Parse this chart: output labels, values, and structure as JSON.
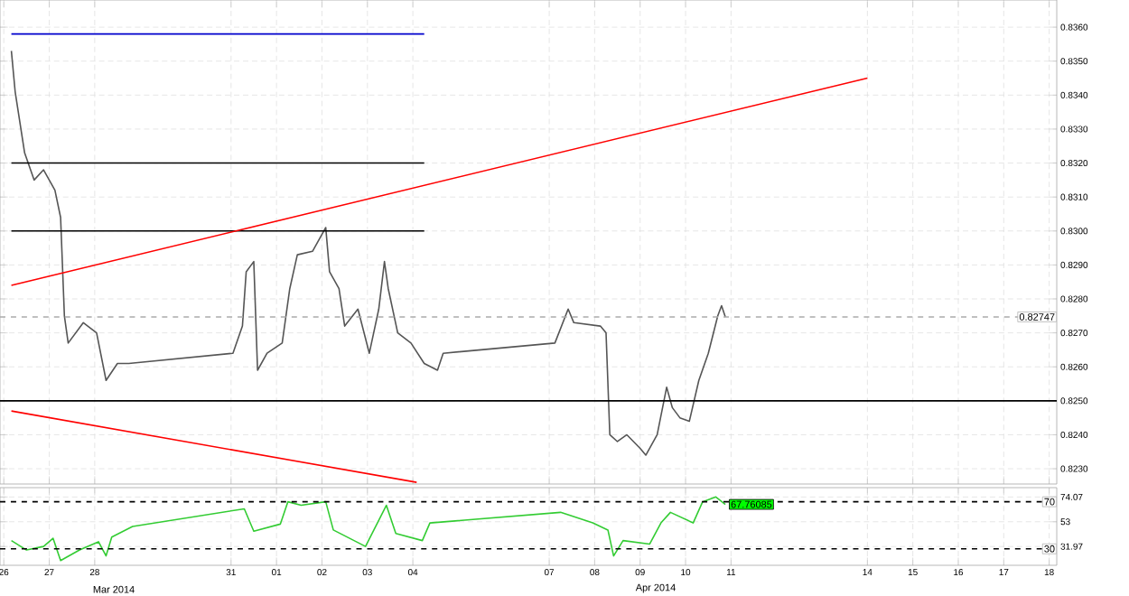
{
  "chart_data": [
    {
      "type": "line",
      "xlim": [
        "2014-03-25T22:00",
        "2014-04-18T04:00"
      ],
      "ylim": [
        0.82255,
        0.8368
      ],
      "xticks": [
        {
          "value": "2014-03-26",
          "label": null
        },
        {
          "value": "2014-03-27",
          "label": null
        },
        {
          "value": "2014-03-28",
          "label": null
        },
        {
          "value": "2014-03-31",
          "label": null
        },
        {
          "value": "2014-04-01",
          "label": null
        },
        {
          "value": "2014-04-02",
          "label": null
        },
        {
          "value": "2014-04-03",
          "label": null
        },
        {
          "value": "2014-04-04",
          "label": null
        },
        {
          "value": "2014-04-07",
          "label": null
        },
        {
          "value": "2014-04-08",
          "label": null
        },
        {
          "value": "2014-04-09",
          "label": null
        },
        {
          "value": "2014-04-10",
          "label": null
        },
        {
          "value": "2014-04-11",
          "label": null
        },
        {
          "value": "2014-04-14",
          "label": null
        },
        {
          "value": "2014-04-15",
          "label": null
        },
        {
          "value": "2014-04-16",
          "label": null
        },
        {
          "value": "2014-04-17",
          "label": null
        },
        {
          "value": "2014-04-18",
          "label": null
        }
      ],
      "yticks": [
        {
          "value": 0.823,
          "label": "0.8230"
        },
        {
          "value": 0.824,
          "label": "0.8240"
        },
        {
          "value": 0.825,
          "label": "0.8250"
        },
        {
          "value": 0.826,
          "label": "0.8260"
        },
        {
          "value": 0.827,
          "label": "0.8270"
        },
        {
          "value": 0.828,
          "label": "0.8280"
        },
        {
          "value": 0.829,
          "label": "0.8290"
        },
        {
          "value": 0.83,
          "label": "0.8300"
        },
        {
          "value": 0.831,
          "label": "0.8310"
        },
        {
          "value": 0.832,
          "label": "0.8320"
        },
        {
          "value": 0.833,
          "label": "0.8330"
        },
        {
          "value": 0.834,
          "label": "0.8340"
        },
        {
          "value": 0.835,
          "label": "0.8350"
        },
        {
          "value": 0.836,
          "label": "0.8360"
        }
      ],
      "tick_labels": "y",
      "grid": true,
      "series": [
        {
          "color": "#555555",
          "x": [
            "2014-03-26T04:00",
            "2014-03-26T06:00",
            "2014-03-26T11:00",
            "2014-03-26T16:00",
            "2014-03-26T21:00",
            "2014-03-27T03:00",
            "2014-03-27T06:00",
            "2014-03-27T08:00",
            "2014-03-27T10:00",
            "2014-03-27T18:00",
            "2014-03-28T01:00",
            "2014-03-28T06:00",
            "2014-03-28T12:00",
            "2014-03-28T18:00",
            "2014-03-31T01:00",
            "2014-03-31T06:00",
            "2014-03-31T08:00",
            "2014-03-31T12:00",
            "2014-03-31T14:00",
            "2014-03-31T19:00",
            "2014-04-01T03:00",
            "2014-04-01T07:00",
            "2014-04-01T11:00",
            "2014-04-01T19:00",
            "2014-04-02T02:00",
            "2014-04-02T04:00",
            "2014-04-02T09:00",
            "2014-04-02T12:00",
            "2014-04-02T19:00",
            "2014-04-03T01:00",
            "2014-04-03T06:00",
            "2014-04-03T09:00",
            "2014-04-03T11:00",
            "2014-04-03T16:00",
            "2014-04-03T23:00",
            "2014-04-04T06:00",
            "2014-04-04T13:00",
            "2014-04-04T16:00",
            "2014-04-07T03:00",
            "2014-04-07T10:00",
            "2014-04-07T13:00",
            "2014-04-08T03:00",
            "2014-04-08T06:00",
            "2014-04-08T08:00",
            "2014-04-08T12:00",
            "2014-04-08T17:00",
            "2014-04-09T00:00",
            "2014-04-09T03:00",
            "2014-04-09T09:00",
            "2014-04-09T14:00",
            "2014-04-09T17:00",
            "2014-04-09T21:00",
            "2014-04-10T02:00",
            "2014-04-10T07:00",
            "2014-04-10T12:00",
            "2014-04-10T17:00",
            "2014-04-10T19:00",
            "2014-04-10T21:00"
          ],
          "values": [
            0.8353,
            0.8341,
            0.8323,
            0.8315,
            0.8318,
            0.8312,
            0.8304,
            0.8275,
            0.8267,
            0.8273,
            0.827,
            0.8256,
            0.8261,
            0.8261,
            0.8264,
            0.8272,
            0.8288,
            0.8291,
            0.8259,
            0.8264,
            0.8267,
            0.8283,
            0.8293,
            0.8294,
            0.8301,
            0.8288,
            0.8283,
            0.8272,
            0.8277,
            0.8264,
            0.8277,
            0.8291,
            0.8283,
            0.827,
            0.8267,
            0.8261,
            0.8259,
            0.8264,
            0.8267,
            0.8277,
            0.8273,
            0.8272,
            0.827,
            0.824,
            0.8238,
            0.824,
            0.8236,
            0.8234,
            0.824,
            0.8254,
            0.8248,
            0.8245,
            0.8244,
            0.8256,
            0.8264,
            0.8275,
            0.8278,
            0.82747
          ]
        },
        {
          "color": "#0000cc",
          "x": [
            "2014-03-26T04:00",
            "2014-04-04T06:00"
          ],
          "values": [
            0.8358,
            0.8358
          ]
        },
        {
          "color": "#000000",
          "x": [
            "2014-03-26T04:00",
            "2014-04-04T06:00"
          ],
          "values": [
            0.832,
            0.832
          ]
        },
        {
          "color": "#000000",
          "x": [
            "2014-03-26T04:00",
            "2014-04-04T06:00"
          ],
          "values": [
            0.83,
            0.83
          ]
        },
        {
          "color": "#ff0000",
          "x": [
            "2014-03-26T04:00",
            "2014-04-14T00:00"
          ],
          "values": [
            0.8284,
            0.8345
          ]
        },
        {
          "color": "#ff0000",
          "x": [
            "2014-03-26T04:00",
            "2014-04-04T02:00"
          ],
          "values": [
            0.8247,
            0.8226
          ]
        }
      ],
      "ref_lines": [
        {
          "axis": "y",
          "value": 0.825,
          "color": "#000000"
        },
        {
          "axis": "y",
          "value": 0.82747,
          "label": "0.82747",
          "color": "#aaaaaa",
          "line_style": "dashed"
        }
      ]
    },
    {
      "type": "line",
      "xlim": [
        "2014-03-25T22:00",
        "2014-04-18T04:00"
      ],
      "ylim": [
        16,
        82
      ],
      "xticks": [
        {
          "value": "2014-03-26",
          "label": "26"
        },
        {
          "value": "2014-03-27",
          "label": "27"
        },
        {
          "value": "2014-03-28",
          "label": "28"
        },
        {
          "value": "2014-03-31",
          "label": "31"
        },
        {
          "value": "2014-04-01",
          "label": "01"
        },
        {
          "value": "2014-04-02",
          "label": "02"
        },
        {
          "value": "2014-04-03",
          "label": "03"
        },
        {
          "value": "2014-04-04",
          "label": "04"
        },
        {
          "value": "2014-04-07",
          "label": "07"
        },
        {
          "value": "2014-04-08",
          "label": "08"
        },
        {
          "value": "2014-04-09",
          "label": "09"
        },
        {
          "value": "2014-04-10",
          "label": "10"
        },
        {
          "value": "2014-04-11",
          "label": "11"
        },
        {
          "value": "2014-04-14",
          "label": "14"
        },
        {
          "value": "2014-04-15",
          "label": "15"
        },
        {
          "value": "2014-04-16",
          "label": "16"
        },
        {
          "value": "2014-04-17",
          "label": "17"
        },
        {
          "value": "2014-04-18",
          "label": "18"
        }
      ],
      "yticks": [
        {
          "value": 31.97,
          "label": "31.97"
        },
        53,
        {
          "value": 74.07,
          "label": "74.07"
        }
      ],
      "grid": true,
      "series": [
        {
          "color": "#33cc33",
          "x": [
            "2014-03-26T04:00",
            "2014-03-26T12:00",
            "2014-03-26T21:00",
            "2014-03-27T02:00",
            "2014-03-27T06:00",
            "2014-03-27T16:00",
            "2014-03-28T02:00",
            "2014-03-28T06:00",
            "2014-03-28T09:00",
            "2014-03-28T20:00",
            "2014-03-31T07:00",
            "2014-03-31T12:00",
            "2014-04-01T02:00",
            "2014-04-01T06:00",
            "2014-04-01T13:00",
            "2014-04-02T02:00",
            "2014-04-02T06:00",
            "2014-04-02T23:00",
            "2014-04-03T10:00",
            "2014-04-03T15:00",
            "2014-04-04T05:00",
            "2014-04-04T09:00",
            "2014-04-07T06:00",
            "2014-04-07T23:00",
            "2014-04-08T07:00",
            "2014-04-08T10:00",
            "2014-04-08T15:00",
            "2014-04-09T05:00",
            "2014-04-09T11:00",
            "2014-04-09T16:00",
            "2014-04-10T04:00",
            "2014-04-10T09:00",
            "2014-04-10T16:00",
            "2014-04-10T21:00"
          ],
          "values": [
            37,
            29,
            32,
            39,
            20,
            29,
            36,
            24,
            40,
            49,
            64,
            45,
            51,
            70,
            67,
            70,
            46,
            32,
            67,
            43,
            37,
            52,
            61,
            52,
            46,
            24,
            37,
            34,
            52,
            61,
            52,
            70,
            74.07,
            67.76085
          ]
        }
      ],
      "ref_lines": [
        {
          "axis": "y",
          "value": 70,
          "label": "70",
          "color": "#000000",
          "line_style": "dashed"
        },
        {
          "axis": "y",
          "value": 30,
          "label": "30",
          "color": "#000000",
          "line_style": "dashed"
        }
      ],
      "annotations": [
        "67.76085",
        "Mar 2014",
        "Apr 2014"
      ]
    }
  ]
}
